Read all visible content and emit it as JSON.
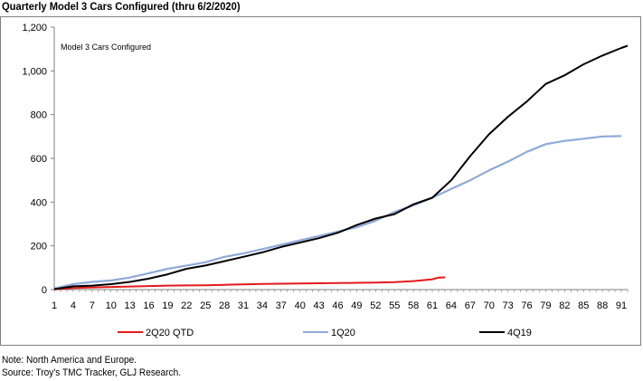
{
  "title": "Quarterly Model 3 Cars Configured (thru 6/2/2020)",
  "footnotes": {
    "note": "Note: North America and Europe.",
    "source": "Source: Troy's TMC Tracker, GLJ Research."
  },
  "chart_data": {
    "type": "line",
    "title": "Quarterly Model 3 Cars Configured (thru 6/2/2020)",
    "inner_label": "Model 3 Cars Configured",
    "xlabel": "",
    "ylabel": "",
    "xlim": [
      1,
      92
    ],
    "ylim": [
      0,
      1200
    ],
    "x_ticks": [
      "1",
      "4",
      "7",
      "10",
      "13",
      "16",
      "19",
      "22",
      "25",
      "28",
      "31",
      "34",
      "37",
      "40",
      "43",
      "46",
      "49",
      "52",
      "55",
      "58",
      "61",
      "64",
      "67",
      "70",
      "73",
      "76",
      "79",
      "82",
      "85",
      "88",
      "91"
    ],
    "y_ticks": [
      "0",
      "200",
      "400",
      "600",
      "800",
      "1,000",
      "1,200"
    ],
    "grid": false,
    "legend": "bottom",
    "series": [
      {
        "name": "2Q20 QTD",
        "color": "#e31a1c",
        "x": [
          1,
          4,
          7,
          10,
          13,
          16,
          19,
          22,
          25,
          28,
          31,
          34,
          37,
          40,
          43,
          46,
          49,
          52,
          55,
          58,
          61,
          62,
          63
        ],
        "y": [
          1,
          7,
          10,
          12,
          14,
          16,
          18,
          19,
          20,
          22,
          24,
          26,
          27,
          28,
          29,
          30,
          31,
          32,
          34,
          39,
          47,
          55,
          56
        ]
      },
      {
        "name": "1Q20",
        "color": "#8eaad9",
        "x": [
          1,
          4,
          7,
          10,
          13,
          16,
          19,
          22,
          25,
          28,
          31,
          34,
          37,
          40,
          43,
          46,
          49,
          52,
          55,
          58,
          61,
          64,
          67,
          70,
          73,
          76,
          79,
          82,
          85,
          88,
          91
        ],
        "y": [
          5,
          25,
          35,
          42,
          55,
          75,
          95,
          110,
          125,
          150,
          165,
          185,
          205,
          225,
          245,
          265,
          285,
          315,
          355,
          385,
          420,
          460,
          500,
          545,
          585,
          630,
          665,
          680,
          690,
          700,
          702
        ]
      },
      {
        "name": "4Q19",
        "color": "#000000",
        "x": [
          1,
          4,
          7,
          10,
          13,
          16,
          19,
          22,
          25,
          28,
          31,
          34,
          37,
          40,
          43,
          46,
          49,
          52,
          55,
          58,
          61,
          64,
          67,
          70,
          73,
          76,
          79,
          82,
          85,
          88,
          91,
          92
        ],
        "y": [
          2,
          15,
          18,
          25,
          35,
          50,
          70,
          95,
          110,
          130,
          150,
          170,
          195,
          215,
          235,
          260,
          295,
          325,
          345,
          390,
          420,
          500,
          610,
          710,
          790,
          860,
          940,
          980,
          1030,
          1070,
          1105,
          1115
        ]
      }
    ]
  }
}
